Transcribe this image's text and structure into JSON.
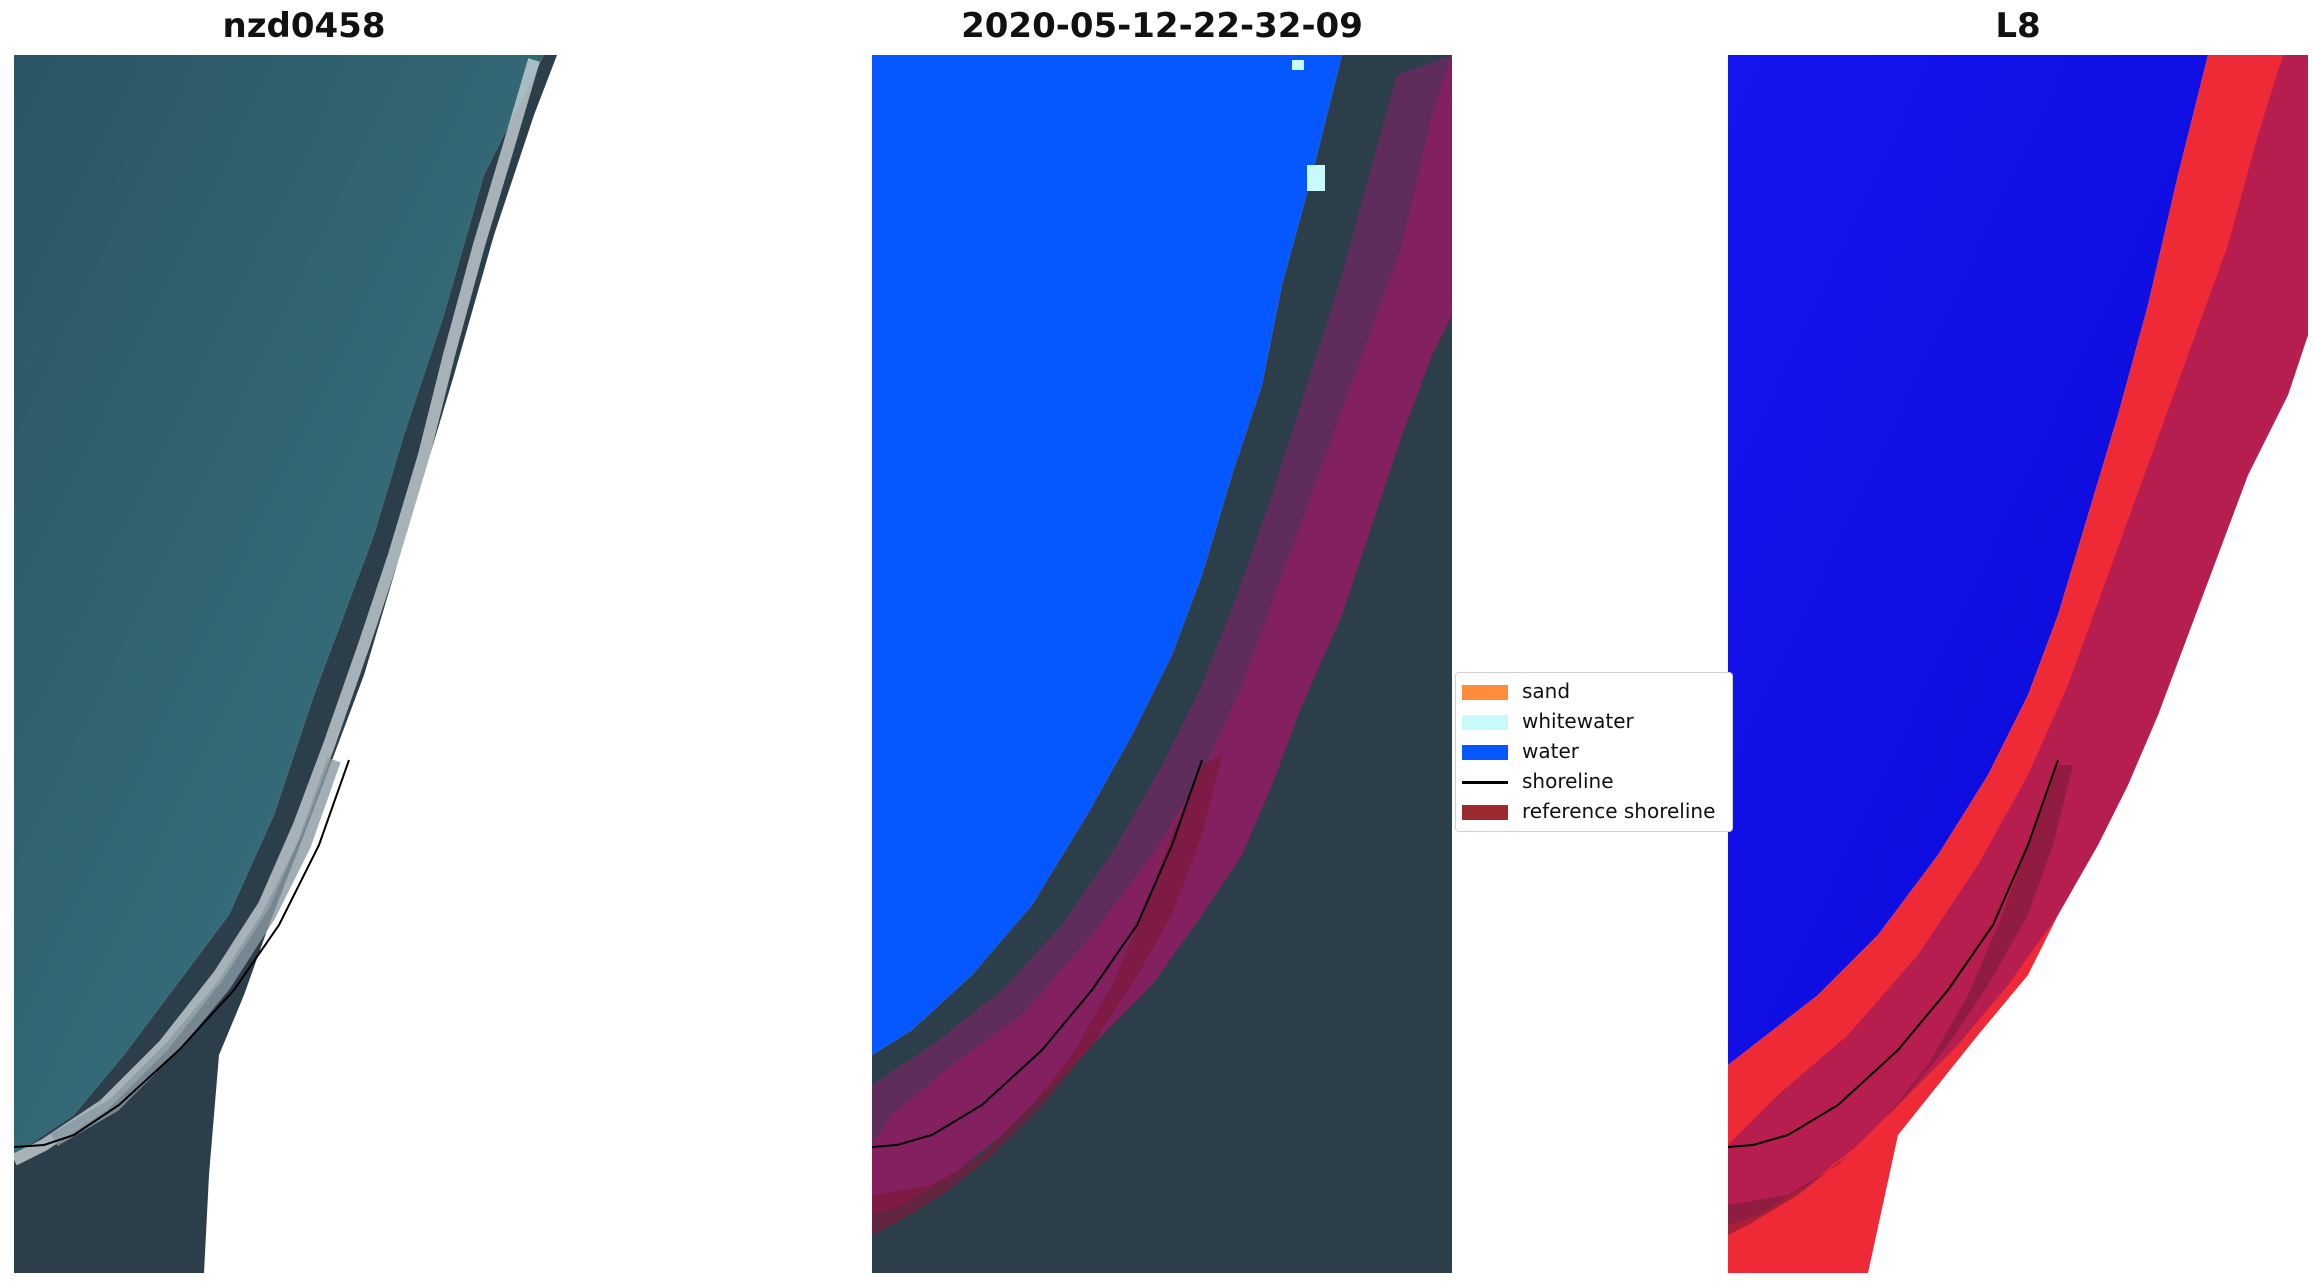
{
  "panels": [
    {
      "title": "nzd0458"
    },
    {
      "title": "2020-05-12-22-32-09"
    },
    {
      "title": "L8"
    }
  ],
  "legend": {
    "placement": "center-right of middle panel",
    "items": [
      {
        "label": "sand",
        "color": "#ff8c3a",
        "kind": "patch"
      },
      {
        "label": "whitewater",
        "color": "#c8f9fb",
        "kind": "patch"
      },
      {
        "label": "water",
        "color": "#0558ff",
        "kind": "patch"
      },
      {
        "label": "shoreline",
        "color": "#000000",
        "kind": "line"
      },
      {
        "label": "reference shoreline",
        "color": "#9c2a2e",
        "kind": "patch"
      }
    ]
  },
  "colors": {
    "ocean": "#2f5f6d",
    "land": "#2c3e4a",
    "water_class": "#0558ff",
    "l8_water": "#1010f5",
    "buffer": "#9c1a5a",
    "reference": "#7a1a3a",
    "l8_land": "#ee2a36"
  }
}
